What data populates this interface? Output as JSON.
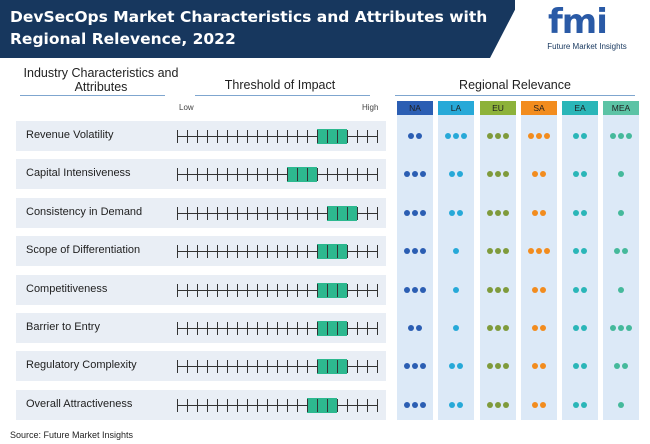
{
  "header": {
    "title": "DevSecOps Market Characteristics and Attributes with Regional Relevence, 2022",
    "logo_text": "fmi",
    "logo_subtitle": "Future Market Insights"
  },
  "columns": {
    "characteristics": "Industry Characteristics and Attributes",
    "threshold": "Threshold of Impact",
    "regional": "Regional Relevance",
    "low": "Low",
    "high": "High"
  },
  "regions": [
    {
      "code": "NA",
      "color": "#2b5eb3",
      "head_color": "#2b5eb3"
    },
    {
      "code": "LA",
      "color": "#27a9d8",
      "head_color": "#27a9d8"
    },
    {
      "code": "EU",
      "color": "#7f9b3c",
      "head_color": "#8db23a"
    },
    {
      "code": "SA",
      "color": "#f28c1e",
      "head_color": "#f28c1e"
    },
    {
      "code": "EA",
      "color": "#2ab6b8",
      "head_color": "#2ab6b8"
    },
    {
      "code": "MEA",
      "color": "#45b99b",
      "head_color": "#5cc3a5"
    }
  ],
  "rows": [
    {
      "label": "Revenue Volatility",
      "impact_start": 14,
      "impact_end": 17,
      "relevance": [
        2,
        3,
        3,
        3,
        2,
        3
      ]
    },
    {
      "label": "Capital Intensiveness",
      "impact_start": 11,
      "impact_end": 14,
      "relevance": [
        3,
        2,
        3,
        2,
        2,
        1
      ]
    },
    {
      "label": "Consistency in Demand",
      "impact_start": 15,
      "impact_end": 18,
      "relevance": [
        3,
        2,
        3,
        2,
        2,
        1
      ]
    },
    {
      "label": "Scope of Differentiation",
      "impact_start": 14,
      "impact_end": 17,
      "relevance": [
        3,
        1,
        3,
        3,
        2,
        2
      ]
    },
    {
      "label": "Competitiveness",
      "impact_start": 14,
      "impact_end": 17,
      "relevance": [
        3,
        1,
        3,
        2,
        2,
        1
      ]
    },
    {
      "label": "Barrier to Entry",
      "impact_start": 14,
      "impact_end": 17,
      "relevance": [
        2,
        1,
        3,
        2,
        2,
        3
      ]
    },
    {
      "label": "Regulatory Complexity",
      "impact_start": 14,
      "impact_end": 17,
      "relevance": [
        3,
        2,
        3,
        2,
        2,
        2
      ]
    },
    {
      "label": "Overall Attractiveness",
      "impact_start": 13,
      "impact_end": 16,
      "relevance": [
        3,
        2,
        3,
        2,
        2,
        1
      ]
    }
  ],
  "scale_steps": 20,
  "source": "Source: Future Market Insights"
}
